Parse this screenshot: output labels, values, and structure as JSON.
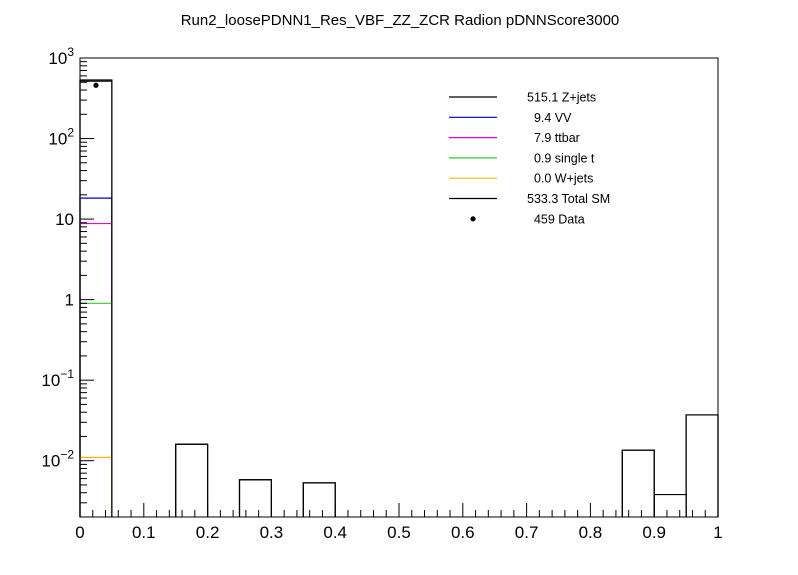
{
  "chart_data": {
    "type": "bar",
    "title": "Run2_loosePDNN1_Res_VBF_ZZ_ZCR Radion  pDNNScore3000",
    "xlabel": "",
    "ylabel": "",
    "xlim": [
      0,
      1
    ],
    "ylim": [
      0.002,
      1000
    ],
    "yscale": "log",
    "x_tick_labels": [
      "0",
      "0.1",
      "0.2",
      "0.3",
      "0.4",
      "0.5",
      "0.6",
      "0.7",
      "0.8",
      "0.9",
      "1"
    ],
    "y_tick_labels": [
      {
        "value": 0.01,
        "base": "10",
        "exp": "−2"
      },
      {
        "value": 0.1,
        "base": "10",
        "exp": "−1"
      },
      {
        "value": 1,
        "base": "1",
        "exp": ""
      },
      {
        "value": 10,
        "base": "10",
        "exp": ""
      },
      {
        "value": 100,
        "base": "10",
        "exp": "2"
      },
      {
        "value": 1000,
        "base": "10",
        "exp": "3"
      }
    ],
    "bin_width": 0.05,
    "bins": [
      0,
      0.05,
      0.1,
      0.15,
      0.2,
      0.25,
      0.3,
      0.35,
      0.4,
      0.45,
      0.5,
      0.55,
      0.6,
      0.65,
      0.7,
      0.75,
      0.8,
      0.85,
      0.9,
      0.95
    ],
    "series": [
      {
        "name": "Z+jets",
        "total": "515.1",
        "color": "#000000",
        "values": [
          515.1,
          0,
          0,
          0.016,
          0,
          0.0058,
          0,
          0.0053,
          0,
          0,
          0,
          0,
          0,
          0,
          0,
          0,
          0,
          0.0135,
          0,
          0.037
        ]
      },
      {
        "name": "VV",
        "total": "9.4",
        "color": "#0000cc",
        "values": [
          18.2,
          0,
          0,
          0,
          0,
          0,
          0,
          0,
          0,
          0,
          0,
          0,
          0,
          0,
          0,
          0,
          0,
          0,
          0,
          0
        ]
      },
      {
        "name": "ttbar",
        "total": "7.9",
        "color": "#e600e6",
        "values": [
          8.8,
          0,
          0,
          0,
          0,
          0,
          0,
          0,
          0,
          0,
          0,
          0,
          0,
          0,
          0,
          0,
          0,
          0,
          0,
          0
        ]
      },
      {
        "name": "single t",
        "total": "0.9",
        "color": "#33cc33",
        "values": [
          0.9,
          0,
          0,
          0,
          0,
          0,
          0,
          0,
          0,
          0,
          0,
          0,
          0,
          0,
          0,
          0,
          0,
          0,
          0,
          0
        ]
      },
      {
        "name": "W+jets",
        "total": "0.0",
        "color": "#f2b800",
        "values": [
          0.011,
          0,
          0,
          0,
          0,
          0,
          0,
          0,
          0,
          0,
          0,
          0,
          0,
          0,
          0,
          0,
          0,
          0,
          0,
          0
        ]
      },
      {
        "name": "Total SM",
        "total": "533.3",
        "color": "#000000",
        "values": [
          533.3,
          0,
          0,
          0.016,
          0,
          0.0058,
          0,
          0.0053,
          0,
          0,
          0,
          0,
          0,
          0,
          0,
          0,
          0,
          0.0135,
          0.0038,
          0.037
        ]
      }
    ],
    "data": {
      "name": "Data",
      "total": "459",
      "color": "#000000",
      "points": [
        {
          "x": 0.025,
          "y": 459
        }
      ]
    },
    "legend": {
      "position": "top-right",
      "entries": [
        {
          "label": "515.1 Z+jets",
          "color": "#000000",
          "marker": "line"
        },
        {
          "label": "  9.4 VV",
          "color": "#0000cc",
          "marker": "line"
        },
        {
          "label": "  7.9 ttbar",
          "color": "#e600e6",
          "marker": "line"
        },
        {
          "label": "  0.9 single t",
          "color": "#33cc33",
          "marker": "line"
        },
        {
          "label": "  0.0 W+jets",
          "color": "#f2b800",
          "marker": "line"
        },
        {
          "label": "533.3 Total SM",
          "color": "#000000",
          "marker": "line"
        },
        {
          "label": "  459 Data",
          "color": "#000000",
          "marker": "point"
        }
      ]
    },
    "grid": false
  }
}
